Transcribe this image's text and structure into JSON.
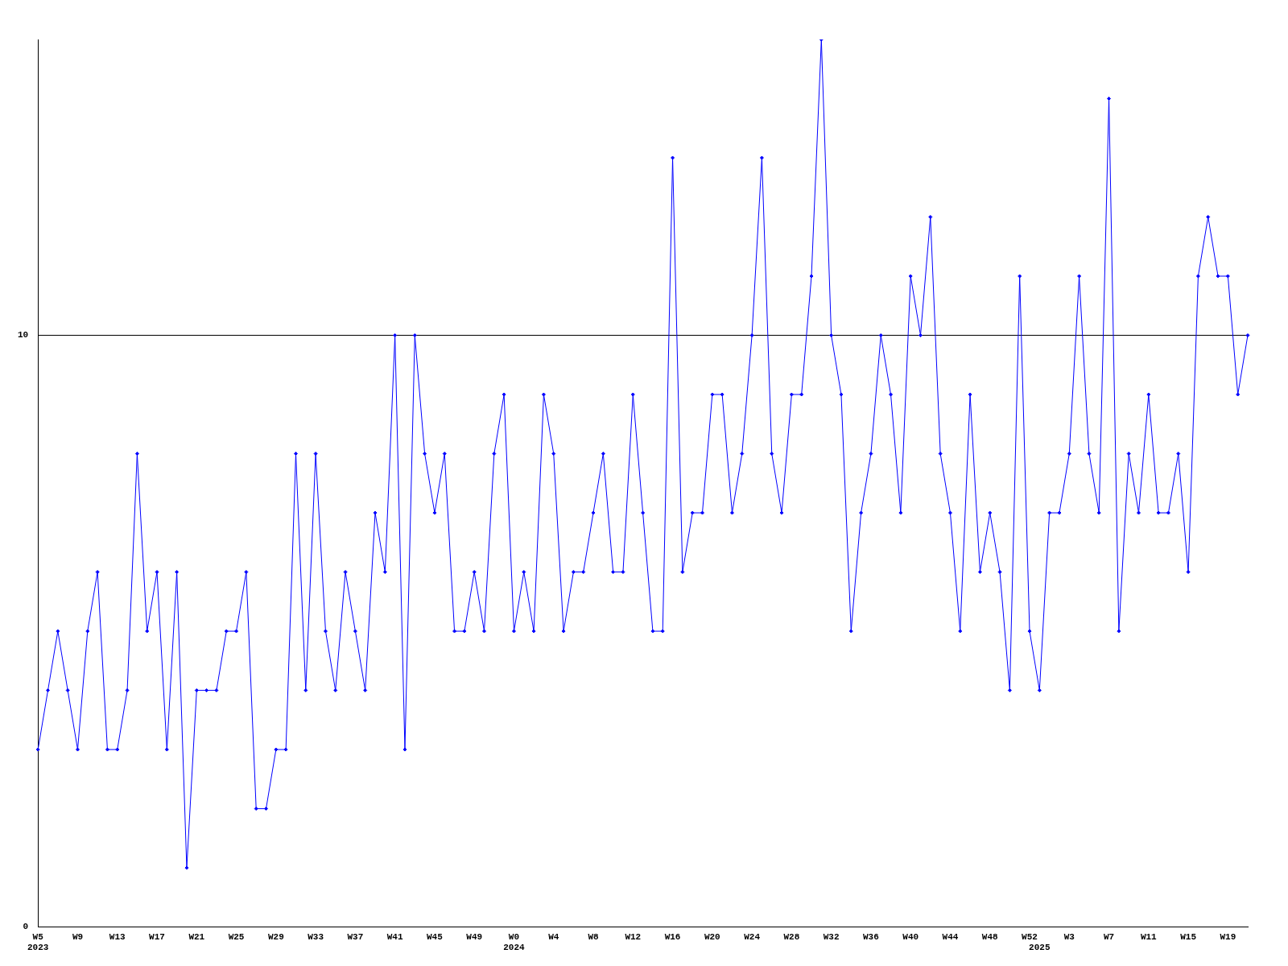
{
  "chart_data": {
    "type": "line",
    "categories": [
      "W5\n2023",
      null,
      null,
      null,
      "W9",
      null,
      null,
      null,
      "W13",
      null,
      null,
      null,
      "W17",
      null,
      null,
      null,
      "W21",
      null,
      null,
      null,
      "W25",
      null,
      null,
      null,
      "W29",
      null,
      null,
      null,
      "W33",
      null,
      null,
      null,
      "W37",
      null,
      null,
      null,
      "W41",
      null,
      null,
      null,
      "W45",
      null,
      null,
      null,
      "W49",
      null,
      null,
      null,
      "W0\n2024",
      null,
      null,
      null,
      "W4",
      null,
      null,
      null,
      "W8",
      null,
      null,
      null,
      "W12",
      null,
      null,
      null,
      "W16",
      null,
      null,
      null,
      "W20",
      null,
      null,
      null,
      "W24",
      null,
      null,
      null,
      "W28",
      null,
      null,
      null,
      "W32",
      null,
      null,
      null,
      "W36",
      null,
      null,
      null,
      "W40",
      null,
      null,
      null,
      "W44",
      null,
      null,
      null,
      "W48",
      null,
      null,
      null,
      "W52",
      "\n2025",
      null,
      null,
      "W3",
      null,
      null,
      null,
      "W7",
      null,
      null,
      null,
      "W11",
      null,
      null,
      null,
      "W15",
      null,
      null,
      null,
      "W19",
      null,
      null
    ],
    "series": [
      {
        "color": "#0000ff",
        "values": [
          3,
          4,
          5,
          4,
          3,
          5,
          6,
          3,
          3,
          4,
          8,
          5,
          6,
          3,
          6,
          1,
          4,
          4,
          4,
          5,
          5,
          6,
          2,
          2,
          3,
          3,
          8,
          4,
          8,
          5,
          4,
          6,
          5,
          4,
          7,
          6,
          10,
          3,
          10,
          8,
          7,
          8,
          5,
          5,
          6,
          5,
          8,
          9,
          5,
          6,
          5,
          9,
          8,
          5,
          6,
          6,
          7,
          8,
          6,
          6,
          9,
          7,
          5,
          5,
          13,
          6,
          7,
          7,
          9,
          9,
          7,
          8,
          10,
          13,
          8,
          7,
          9,
          9,
          11,
          15,
          10,
          9,
          5,
          7,
          8,
          10,
          9,
          7,
          11,
          10,
          12,
          8,
          7,
          5,
          9,
          6,
          7,
          6,
          4,
          11,
          5,
          4,
          7,
          7,
          8,
          11,
          8,
          7,
          14,
          5,
          8,
          7,
          9,
          7,
          7,
          8,
          6,
          11,
          12,
          11,
          11,
          9,
          10
        ]
      }
    ],
    "ylim": [
      0,
      15
    ],
    "yticks": [
      0,
      10
    ],
    "grid": "y",
    "marker": "diamond",
    "legend": false
  }
}
